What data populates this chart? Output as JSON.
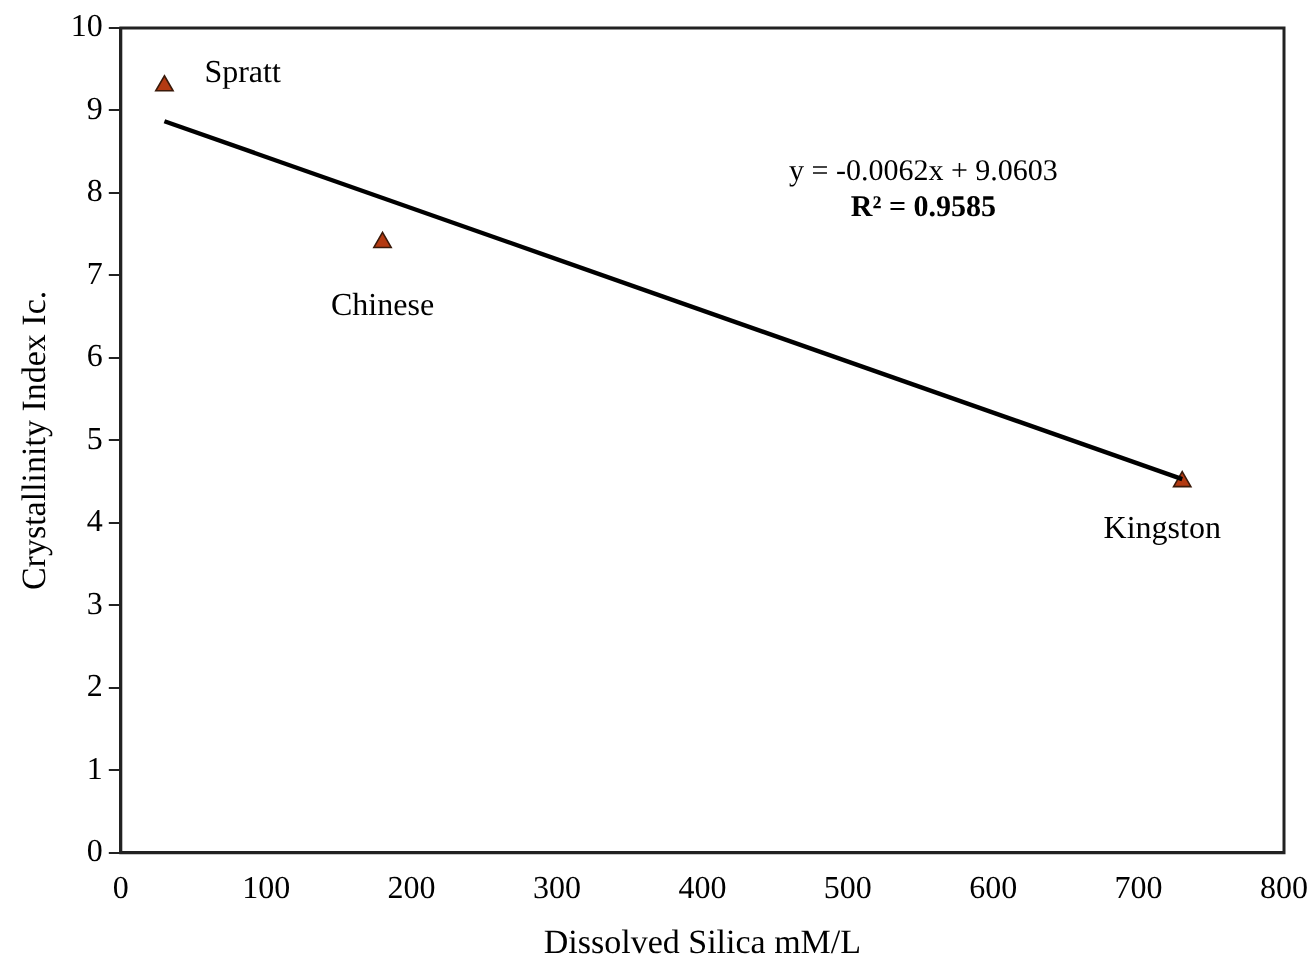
{
  "chart_data": {
    "type": "scatter",
    "xlabel": "Dissolved Silica mM/L",
    "ylabel": "Crystallinity Index Ic.",
    "xlim": [
      0,
      800
    ],
    "xticks": [
      0,
      100,
      200,
      300,
      400,
      500,
      600,
      700,
      800
    ],
    "ylim": [
      0,
      10
    ],
    "yticks": [
      0,
      1,
      2,
      3,
      4,
      5,
      6,
      7,
      8,
      9,
      10
    ],
    "grid": false,
    "legend": false,
    "marker": "triangle",
    "series": [
      {
        "color": "#b33a12",
        "x": [
          30,
          180,
          730
        ],
        "values": [
          9.3,
          7.4,
          4.5
        ]
      },
      {
        "type": "line",
        "color": "#000000",
        "marker": "none",
        "line_style": "solid",
        "x": [
          30,
          730
        ],
        "values": [
          8.87,
          4.53
        ]
      }
    ],
    "annotations": [
      {
        "text": "Spratt",
        "x": 30,
        "y": 9.3
      },
      {
        "text": "Chinese",
        "x": 180,
        "y": 7.4
      },
      {
        "text": "Kingston",
        "x": 730,
        "y": 4.5
      },
      "y = -0.0062x + 9.0603",
      "R² = 0.9585"
    ]
  }
}
